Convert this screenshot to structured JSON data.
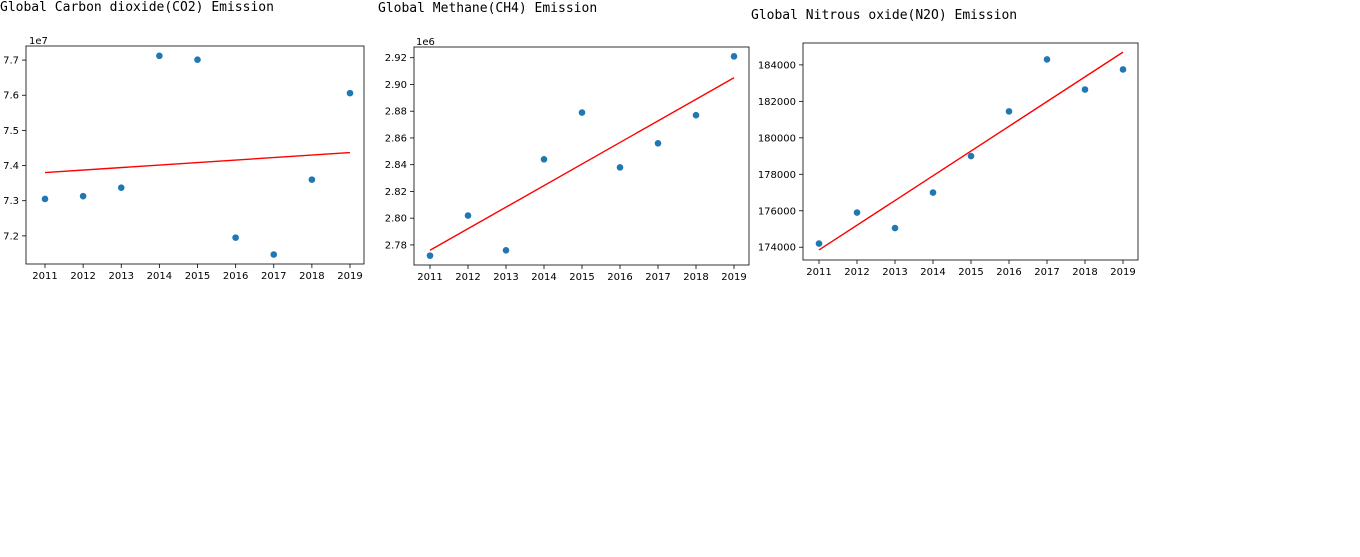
{
  "chart_data": [
    {
      "type": "scatter",
      "title": "Global Carbon dioxide(CO2) Emission",
      "offset_text": "1e7",
      "x": [
        2011,
        2012,
        2013,
        2014,
        2015,
        2016,
        2017,
        2018,
        2019
      ],
      "y": [
        7.305,
        7.313,
        7.337,
        7.712,
        7.701,
        7.195,
        7.147,
        7.36,
        7.606
      ],
      "xticks": [
        "2011",
        "2012",
        "2013",
        "2014",
        "2015",
        "2016",
        "2017",
        "2018",
        "2019"
      ],
      "yticks": [
        "7.2",
        "7.3",
        "7.4",
        "7.5",
        "7.6",
        "7.7"
      ],
      "ylim": [
        7.12,
        7.74
      ],
      "trendline": {
        "x": [
          2011,
          2019
        ],
        "y": [
          7.38,
          7.437
        ]
      },
      "marker_color": "#1f77b4",
      "line_color": "#ff0000"
    },
    {
      "type": "scatter",
      "title": "Global Methane(CH4) Emission",
      "offset_text": "1e6",
      "x": [
        2011,
        2012,
        2013,
        2014,
        2015,
        2016,
        2017,
        2018,
        2019
      ],
      "y": [
        2.772,
        2.802,
        2.776,
        2.844,
        2.879,
        2.838,
        2.856,
        2.877,
        2.921
      ],
      "xticks": [
        "2011",
        "2012",
        "2013",
        "2014",
        "2015",
        "2016",
        "2017",
        "2018",
        "2019"
      ],
      "yticks": [
        "2.78",
        "2.80",
        "2.82",
        "2.84",
        "2.86",
        "2.88",
        "2.90",
        "2.92"
      ],
      "ylim": [
        2.765,
        2.928
      ],
      "trendline": {
        "x": [
          2011,
          2019
        ],
        "y": [
          2.776,
          2.905
        ]
      },
      "marker_color": "#1f77b4",
      "line_color": "#ff0000"
    },
    {
      "type": "scatter",
      "title": "Global Nitrous oxide(N2O) Emission",
      "offset_text": "",
      "x": [
        2011,
        2012,
        2013,
        2014,
        2015,
        2016,
        2017,
        2018,
        2019
      ],
      "y": [
        174200,
        175900,
        175050,
        177000,
        179000,
        181450,
        184300,
        182650,
        183750
      ],
      "xticks": [
        "2011",
        "2012",
        "2013",
        "2014",
        "2015",
        "2016",
        "2017",
        "2018",
        "2019"
      ],
      "yticks": [
        "174000",
        "176000",
        "178000",
        "180000",
        "182000",
        "184000"
      ],
      "ylim": [
        173300,
        185200
      ],
      "trendline": {
        "x": [
          2011,
          2019
        ],
        "y": [
          173850,
          184700
        ]
      },
      "marker_color": "#1f77b4",
      "line_color": "#ff0000"
    }
  ]
}
